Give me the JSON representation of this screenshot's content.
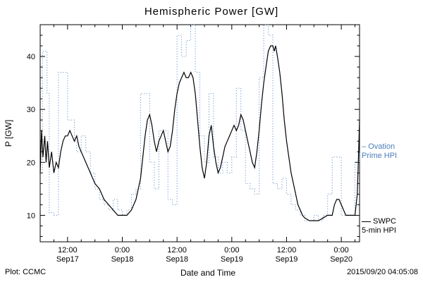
{
  "title": "Hemispheric Power [GW]",
  "footer": {
    "left": "Plot: CCMC",
    "xlabel": "Date and Time",
    "right": "2015/09/20 04:05:08"
  },
  "legend": {
    "ovation": {
      "line1": "– Ovation",
      "line2": "Prime HPI",
      "color": "#4a7ebb"
    },
    "swpc": {
      "line1": "SWPC",
      "line2": "5-min HPI",
      "color": "#000000"
    }
  },
  "chart_data": {
    "type": "line",
    "title": "Hemispheric Power [GW]",
    "xlabel": "Date and Time",
    "ylabel": "P [GW]",
    "x_unit": "hours since 2015-09-17 00:00 UT",
    "xlim": [
      6,
      76
    ],
    "ylim": [
      5,
      46
    ],
    "grid": false,
    "y_ticks": [
      10,
      20,
      30,
      40
    ],
    "x_ticks": [
      {
        "x": 12,
        "top": "12:00",
        "bottom": "Sep17"
      },
      {
        "x": 24,
        "top": "0:00",
        "bottom": "Sep18"
      },
      {
        "x": 36,
        "top": "12:00",
        "bottom": "Sep18"
      },
      {
        "x": 48,
        "top": "0:00",
        "bottom": "Sep19"
      },
      {
        "x": 60,
        "top": "12:00",
        "bottom": "Sep19"
      },
      {
        "x": 72,
        "top": "0:00",
        "bottom": "Sep20"
      }
    ],
    "legend_position": "right-outside",
    "series": [
      {
        "name": "Ovation Prime HPI",
        "data_name": "series-ovation-prime-hpi",
        "color": "#4a7ebb",
        "style": "dotted",
        "dash": "1 2.6",
        "step": true,
        "width": 1,
        "points": [
          [
            6,
            18
          ],
          [
            6.5,
            41
          ],
          [
            7.5,
            33
          ],
          [
            8,
            10.5
          ],
          [
            9,
            10
          ],
          [
            10,
            37
          ],
          [
            12,
            28
          ],
          [
            13.5,
            24
          ],
          [
            14,
            22
          ],
          [
            15,
            25
          ],
          [
            16,
            22
          ],
          [
            17,
            18
          ],
          [
            18,
            15
          ],
          [
            19,
            13
          ],
          [
            20,
            12
          ],
          [
            21,
            11
          ],
          [
            22,
            13
          ],
          [
            23,
            11
          ],
          [
            24,
            10
          ],
          [
            25,
            11
          ],
          [
            26,
            14
          ],
          [
            27,
            15
          ],
          [
            28,
            33
          ],
          [
            29.5,
            33
          ],
          [
            30,
            20
          ],
          [
            31,
            15
          ],
          [
            32,
            26
          ],
          [
            33.5,
            26
          ],
          [
            34,
            13
          ],
          [
            35,
            12
          ],
          [
            36,
            44
          ],
          [
            37,
            40
          ],
          [
            38,
            43
          ],
          [
            39,
            46
          ],
          [
            40,
            37
          ],
          [
            41,
            25
          ],
          [
            42,
            20
          ],
          [
            43,
            33
          ],
          [
            44,
            21
          ],
          [
            45,
            18
          ],
          [
            46,
            20
          ],
          [
            47,
            18
          ],
          [
            48,
            21
          ],
          [
            49,
            34
          ],
          [
            50,
            26
          ],
          [
            51,
            16
          ],
          [
            52,
            15
          ],
          [
            53,
            14
          ],
          [
            54,
            36
          ],
          [
            55,
            46
          ],
          [
            56,
            44
          ],
          [
            57,
            16
          ],
          [
            58,
            15
          ],
          [
            59,
            17
          ],
          [
            60,
            14
          ],
          [
            61,
            12
          ],
          [
            62,
            11
          ],
          [
            63,
            10
          ],
          [
            64,
            9
          ],
          [
            65,
            9
          ],
          [
            66,
            10
          ],
          [
            67,
            9
          ],
          [
            68,
            10
          ],
          [
            69,
            14
          ],
          [
            70,
            21
          ],
          [
            71.5,
            21
          ],
          [
            72,
            10
          ],
          [
            74,
            10
          ],
          [
            75,
            20
          ],
          [
            76,
            22
          ]
        ]
      },
      {
        "name": "SWPC 5-min HPI",
        "data_name": "series-swpc-5min-hpi",
        "color": "#000000",
        "style": "solid",
        "dash": "",
        "step": false,
        "width": 1.2,
        "points": [
          [
            6,
            18
          ],
          [
            6.3,
            26
          ],
          [
            6.6,
            21
          ],
          [
            7,
            25
          ],
          [
            7.3,
            20
          ],
          [
            7.6,
            24
          ],
          [
            8,
            19
          ],
          [
            8.5,
            22
          ],
          [
            9,
            18
          ],
          [
            9.5,
            20
          ],
          [
            10,
            19
          ],
          [
            10.5,
            22
          ],
          [
            11,
            24
          ],
          [
            11.5,
            25
          ],
          [
            12,
            25
          ],
          [
            12.5,
            26
          ],
          [
            13,
            25
          ],
          [
            13.5,
            24
          ],
          [
            14,
            25
          ],
          [
            14.5,
            23
          ],
          [
            15,
            22
          ],
          [
            16,
            20
          ],
          [
            17,
            18
          ],
          [
            18,
            16
          ],
          [
            19,
            15
          ],
          [
            20,
            13
          ],
          [
            21,
            12
          ],
          [
            22,
            11
          ],
          [
            23,
            10
          ],
          [
            24,
            10
          ],
          [
            25,
            10
          ],
          [
            26,
            11
          ],
          [
            27,
            13
          ],
          [
            28,
            17
          ],
          [
            28.5,
            21
          ],
          [
            29,
            25
          ],
          [
            29.5,
            28
          ],
          [
            30,
            29
          ],
          [
            30.5,
            27
          ],
          [
            31,
            24
          ],
          [
            31.5,
            22
          ],
          [
            32,
            24
          ],
          [
            32.5,
            25
          ],
          [
            33,
            26
          ],
          [
            33.5,
            24
          ],
          [
            34,
            22
          ],
          [
            34.5,
            23
          ],
          [
            35,
            26
          ],
          [
            35.5,
            30
          ],
          [
            36,
            33
          ],
          [
            36.5,
            35
          ],
          [
            37,
            36
          ],
          [
            37.5,
            37
          ],
          [
            38,
            36
          ],
          [
            38.5,
            36
          ],
          [
            39,
            37
          ],
          [
            39.5,
            36
          ],
          [
            40,
            33
          ],
          [
            40.5,
            28
          ],
          [
            41,
            23
          ],
          [
            41.5,
            19
          ],
          [
            42,
            17
          ],
          [
            42.5,
            20
          ],
          [
            43,
            25
          ],
          [
            43.5,
            27
          ],
          [
            44,
            23
          ],
          [
            44.5,
            20
          ],
          [
            45,
            18
          ],
          [
            45.5,
            19
          ],
          [
            46,
            21
          ],
          [
            46.5,
            23
          ],
          [
            47,
            24
          ],
          [
            47.5,
            25
          ],
          [
            48,
            26
          ],
          [
            48.5,
            27
          ],
          [
            49,
            26
          ],
          [
            49.5,
            27
          ],
          [
            50,
            29
          ],
          [
            50.5,
            28
          ],
          [
            51,
            26
          ],
          [
            51.5,
            24
          ],
          [
            52,
            22
          ],
          [
            52.5,
            20
          ],
          [
            53,
            19
          ],
          [
            53.5,
            22
          ],
          [
            54,
            26
          ],
          [
            54.5,
            31
          ],
          [
            55,
            35
          ],
          [
            55.5,
            38
          ],
          [
            56,
            41
          ],
          [
            56.5,
            42
          ],
          [
            57,
            42
          ],
          [
            57.3,
            41
          ],
          [
            57.6,
            42
          ],
          [
            58,
            40
          ],
          [
            58.5,
            37
          ],
          [
            59,
            33
          ],
          [
            59.5,
            28
          ],
          [
            60,
            24
          ],
          [
            60.5,
            21
          ],
          [
            61,
            18
          ],
          [
            61.5,
            16
          ],
          [
            62,
            14
          ],
          [
            62.5,
            12
          ],
          [
            63,
            11
          ],
          [
            63.5,
            10
          ],
          [
            64,
            9.5
          ],
          [
            65,
            9
          ],
          [
            66,
            9
          ],
          [
            67,
            9
          ],
          [
            68,
            9.5
          ],
          [
            69,
            10
          ],
          [
            70,
            10
          ],
          [
            70.5,
            12
          ],
          [
            71,
            13
          ],
          [
            71.5,
            13
          ],
          [
            72,
            12
          ],
          [
            72.5,
            11
          ],
          [
            73,
            10
          ],
          [
            74,
            10
          ],
          [
            75,
            10
          ],
          [
            75.5,
            14
          ],
          [
            75.8,
            22
          ],
          [
            76,
            28
          ]
        ]
      }
    ]
  }
}
